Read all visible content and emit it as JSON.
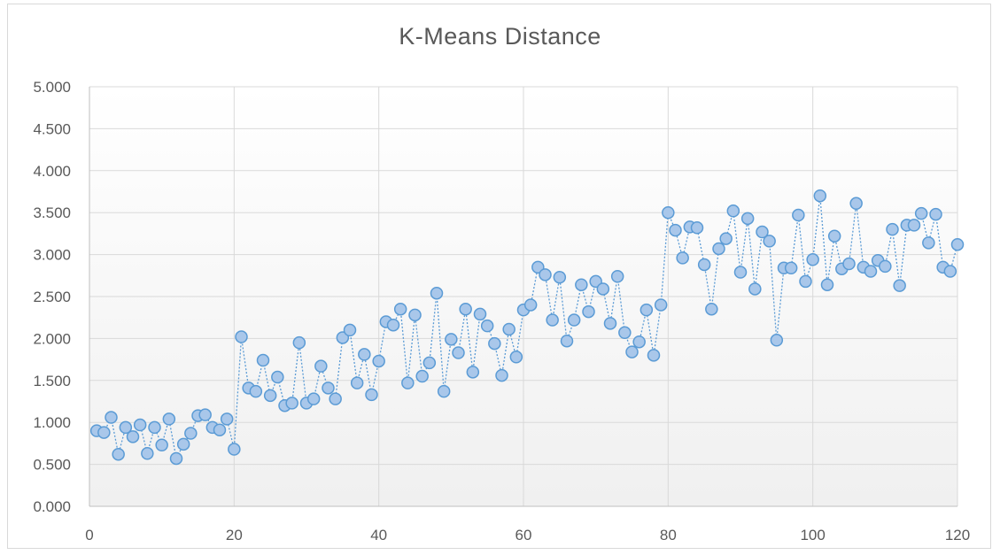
{
  "chart_data": {
    "type": "scatter",
    "title": "K-Means  Distance",
    "xlabel": "",
    "ylabel": "",
    "xlim": [
      0,
      120
    ],
    "ylim": [
      0,
      5
    ],
    "x_ticks": [
      0,
      20,
      40,
      60,
      80,
      100,
      120
    ],
    "x_tick_labels": [
      "0",
      "20",
      "40",
      "60",
      "80",
      "100",
      "120"
    ],
    "y_ticks": [
      0,
      0.5,
      1,
      1.5,
      2,
      2.5,
      3,
      3.5,
      4,
      4.5,
      5
    ],
    "y_tick_labels": [
      "0.000",
      "0.500",
      "1.000",
      "1.500",
      "2.000",
      "2.500",
      "3.000",
      "3.500",
      "4.000",
      "4.500",
      "5.000"
    ],
    "grid": true,
    "line_style": "dotted",
    "marker": "circle",
    "colors": {
      "line": "#5b9bd5",
      "marker_fill": "#a9c7ea",
      "marker_edge": "#5b9bd5",
      "grid": "#d9d9d9",
      "text": "#595959"
    },
    "series": [
      {
        "x": [
          1,
          2,
          3,
          4,
          5,
          6,
          7,
          8,
          9,
          10,
          11,
          12,
          13,
          14,
          15,
          16,
          17,
          18,
          19,
          20,
          21,
          22,
          23,
          24,
          25,
          26,
          27,
          28,
          29,
          30,
          31,
          32,
          33,
          34,
          35,
          36,
          37,
          38,
          39,
          40,
          41,
          42,
          43,
          44,
          45,
          46,
          47,
          48,
          49,
          50,
          51,
          52,
          53,
          54,
          55,
          56,
          57,
          58,
          59,
          60,
          61,
          62,
          63,
          64,
          65,
          66,
          67,
          68,
          69,
          70,
          71,
          72,
          73,
          74,
          75,
          76,
          77,
          78,
          79,
          80,
          81,
          82,
          83,
          84,
          85,
          86,
          87,
          88,
          89,
          90,
          91,
          92,
          93,
          94,
          95,
          96,
          97,
          98,
          99,
          100,
          101,
          102,
          103,
          104,
          105,
          106,
          107,
          108,
          109,
          110,
          111,
          112,
          113,
          114,
          115,
          116,
          117,
          118,
          119,
          120
        ],
        "y": [
          0.9,
          0.88,
          1.06,
          0.62,
          0.94,
          0.83,
          0.97,
          0.63,
          0.94,
          0.73,
          1.04,
          0.57,
          0.74,
          0.87,
          1.08,
          1.09,
          0.94,
          0.91,
          1.04,
          0.68,
          2.02,
          1.41,
          1.37,
          1.74,
          1.32,
          1.54,
          1.2,
          1.23,
          1.95,
          1.23,
          1.28,
          1.67,
          1.41,
          1.28,
          2.01,
          2.1,
          1.47,
          1.81,
          1.33,
          1.73,
          2.2,
          2.16,
          2.35,
          1.47,
          2.28,
          1.55,
          1.71,
          2.54,
          1.37,
          1.99,
          1.83,
          2.35,
          1.6,
          2.29,
          2.15,
          1.94,
          1.56,
          2.11,
          1.78,
          2.34,
          2.4,
          2.85,
          2.76,
          2.22,
          2.73,
          1.97,
          2.22,
          2.64,
          2.32,
          2.68,
          2.59,
          2.18,
          2.74,
          2.07,
          1.84,
          1.96,
          2.34,
          1.8,
          2.4,
          3.5,
          3.29,
          2.96,
          3.33,
          3.32,
          2.88,
          2.35,
          3.07,
          3.19,
          3.52,
          2.79,
          3.43,
          2.59,
          3.27,
          3.16,
          1.98,
          2.84,
          2.84,
          3.47,
          2.68,
          2.94,
          3.7,
          2.64,
          3.22,
          2.83,
          2.89,
          3.61,
          2.85,
          2.8,
          2.93,
          2.86,
          3.3,
          2.63,
          3.35,
          3.35,
          3.49,
          3.14,
          3.48,
          2.85,
          2.8,
          3.12
        ]
      }
    ]
  }
}
